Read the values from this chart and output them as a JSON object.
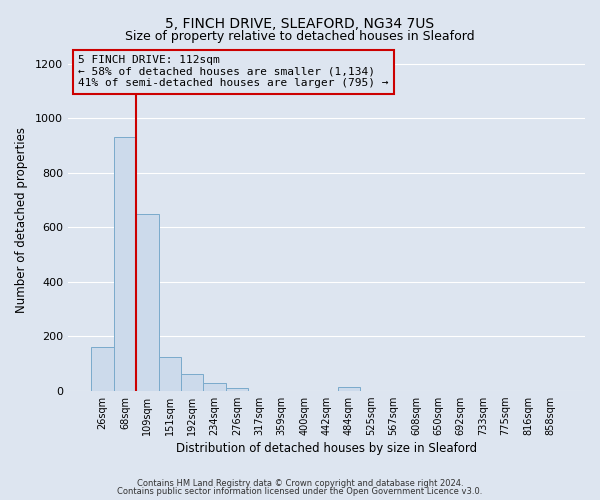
{
  "title": "5, FINCH DRIVE, SLEAFORD, NG34 7US",
  "subtitle": "Size of property relative to detached houses in Sleaford",
  "xlabel": "Distribution of detached houses by size in Sleaford",
  "ylabel": "Number of detached properties",
  "bin_labels": [
    "26sqm",
    "68sqm",
    "109sqm",
    "151sqm",
    "192sqm",
    "234sqm",
    "276sqm",
    "317sqm",
    "359sqm",
    "400sqm",
    "442sqm",
    "484sqm",
    "525sqm",
    "567sqm",
    "608sqm",
    "650sqm",
    "692sqm",
    "733sqm",
    "775sqm",
    "816sqm",
    "858sqm"
  ],
  "bar_values": [
    160,
    930,
    650,
    125,
    60,
    28,
    10,
    0,
    0,
    0,
    0,
    12,
    0,
    0,
    0,
    0,
    0,
    0,
    0,
    0,
    0
  ],
  "bar_color": "#ccdaeb",
  "bar_edge_color": "#7aaacb",
  "vline_color": "#cc0000",
  "annotation_text": "5 FINCH DRIVE: 112sqm\n← 58% of detached houses are smaller (1,134)\n41% of semi-detached houses are larger (795) →",
  "annotation_box_color": "#cc0000",
  "ylim": [
    0,
    1250
  ],
  "yticks": [
    0,
    200,
    400,
    600,
    800,
    1000,
    1200
  ],
  "footer_line1": "Contains HM Land Registry data © Crown copyright and database right 2024.",
  "footer_line2": "Contains public sector information licensed under the Open Government Licence v3.0.",
  "background_color": "#dde5f0",
  "grid_color": "#ffffff",
  "title_fontsize": 10,
  "subtitle_fontsize": 9
}
